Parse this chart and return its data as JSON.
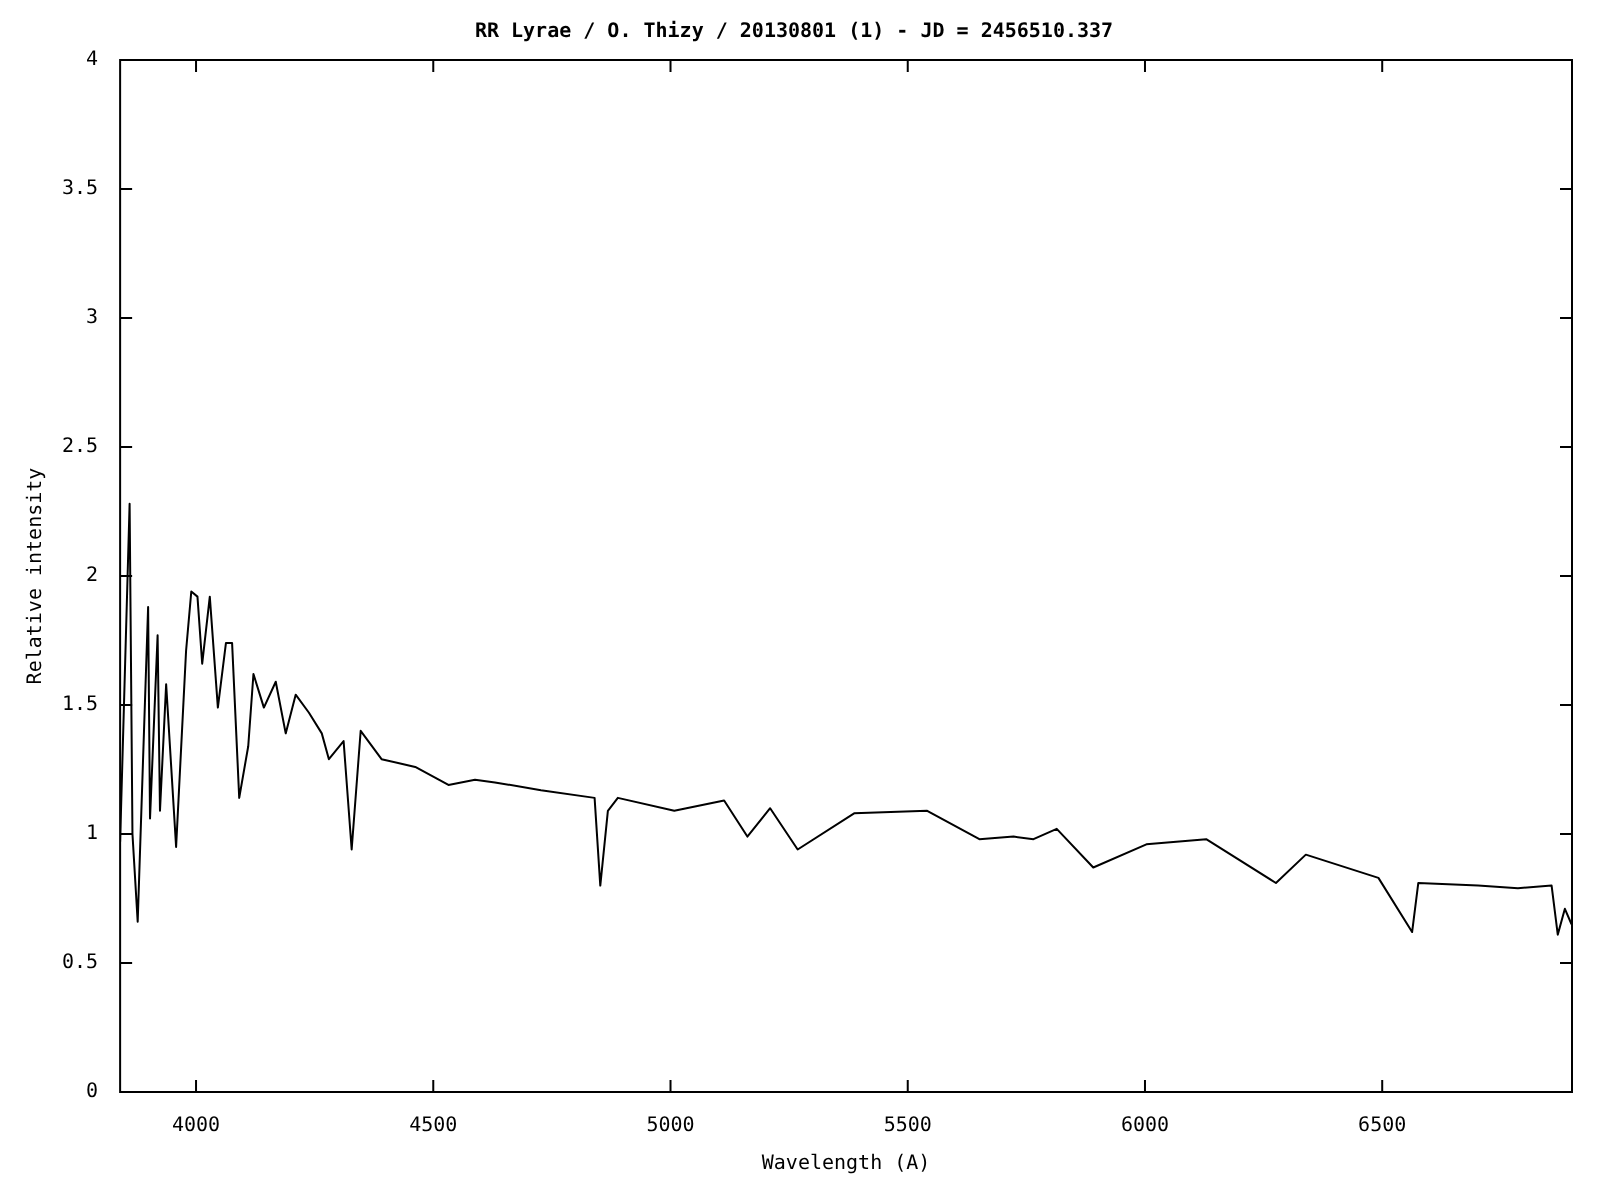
{
  "chart_data": {
    "type": "line",
    "title": "RR Lyrae / O. Thizy / 20130801 (1) - JD = 2456510.337",
    "xlabel": "Wavelength (A)",
    "ylabel": "Relative intensity",
    "x": [
      3840,
      3860,
      3866,
      3877,
      3899,
      3903,
      3919,
      3924,
      3937,
      3958,
      3979,
      3990,
      4003,
      4013,
      4029,
      4046,
      4063,
      4076,
      4091,
      4110,
      4121,
      4143,
      4168,
      4189,
      4210,
      4238,
      4265,
      4280,
      4311,
      4328,
      4347,
      4391,
      4462,
      4532,
      4588,
      4630,
      4727,
      4840,
      4852,
      4868,
      4889,
      5008,
      5113,
      5162,
      5210,
      5268,
      5387,
      5541,
      5651,
      5723,
      5765,
      5814,
      5891,
      6003,
      6129,
      6276,
      6339,
      6492,
      6563,
      6576,
      6702,
      6786,
      6857,
      6870,
      6885,
      6899
    ],
    "series": [
      {
        "color": "#000000",
        "values": [
          0.97,
          2.28,
          1.0,
          0.66,
          1.88,
          1.06,
          1.77,
          1.09,
          1.58,
          0.95,
          1.71,
          1.94,
          1.92,
          1.66,
          1.92,
          1.49,
          1.74,
          1.74,
          1.14,
          1.34,
          1.62,
          1.49,
          1.59,
          1.39,
          1.54,
          1.47,
          1.39,
          1.29,
          1.36,
          0.94,
          1.4,
          1.29,
          1.26,
          1.19,
          1.21,
          1.2,
          1.17,
          1.14,
          0.8,
          1.09,
          1.14,
          1.09,
          1.13,
          0.99,
          1.1,
          0.94,
          1.08,
          1.09,
          0.98,
          0.99,
          0.98,
          1.02,
          0.87,
          0.96,
          0.98,
          0.81,
          0.92,
          0.83,
          0.62,
          0.81,
          0.8,
          0.79,
          0.8,
          0.61,
          0.71,
          0.65
        ]
      }
    ],
    "xlim": [
      3840,
      6900
    ],
    "xticks": [
      4000,
      4500,
      5000,
      5500,
      6000,
      6500
    ],
    "ylim": [
      0,
      4
    ],
    "yticks": [
      0,
      0.5,
      1,
      1.5,
      2,
      2.5,
      3,
      3.5,
      4
    ],
    "grid": false,
    "legend": false,
    "marker": "none",
    "line_style": "solid"
  }
}
